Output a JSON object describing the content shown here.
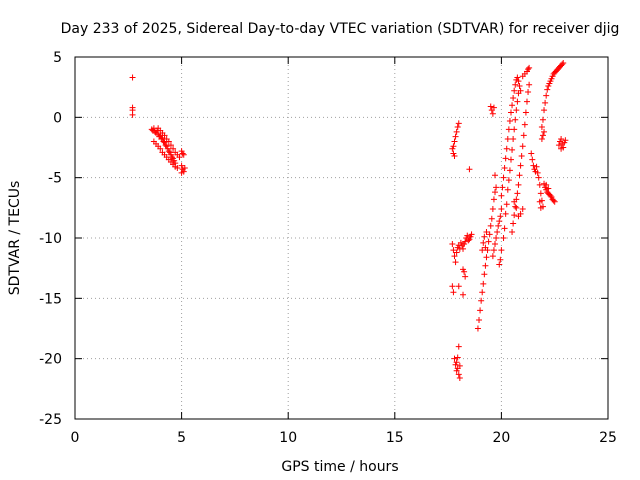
{
  "chart_data": {
    "type": "scatter",
    "title": "Day 233 of 2025, Sidereal Day-to-day VTEC variation (SDTVAR) for receiver djig",
    "xlabel": "GPS time / hours",
    "ylabel": "SDTVAR / TECUs",
    "xlim": [
      0,
      25
    ],
    "ylim": [
      -25,
      5
    ],
    "x_ticks": [
      0,
      5,
      10,
      15,
      20,
      25
    ],
    "x_tick_labels": [
      "0",
      "5",
      "10",
      "15",
      "20",
      "25"
    ],
    "y_ticks": [
      5,
      0,
      -5,
      -10,
      -15,
      -20,
      -25
    ],
    "y_tick_labels": [
      "5",
      "0",
      "-5",
      "-10",
      "-15",
      "-20",
      "-25"
    ],
    "grid": true,
    "marker": "+",
    "series": [
      {
        "name": "SDTVAR",
        "color": "#ff0000",
        "points": [
          [
            2.7,
            3.3
          ],
          [
            2.7,
            0.8
          ],
          [
            2.7,
            0.6
          ],
          [
            2.7,
            0.2
          ],
          [
            3.6,
            -1.0
          ],
          [
            3.65,
            -1.1
          ],
          [
            3.7,
            -0.9
          ],
          [
            3.75,
            -1.2
          ],
          [
            3.8,
            -1.3
          ],
          [
            3.85,
            -1.1
          ],
          [
            3.9,
            -1.4
          ],
          [
            3.95,
            -1.6
          ],
          [
            4.0,
            -1.5
          ],
          [
            4.05,
            -1.8
          ],
          [
            4.1,
            -1.7
          ],
          [
            4.15,
            -2.0
          ],
          [
            4.2,
            -2.1
          ],
          [
            4.25,
            -2.3
          ],
          [
            4.3,
            -2.4
          ],
          [
            4.35,
            -2.6
          ],
          [
            4.4,
            -2.8
          ],
          [
            4.45,
            -2.9
          ],
          [
            4.5,
            -3.1
          ],
          [
            4.55,
            -3.3
          ],
          [
            4.6,
            -3.4
          ],
          [
            4.65,
            -3.6
          ],
          [
            4.7,
            -3.8
          ],
          [
            3.7,
            -2.0
          ],
          [
            3.8,
            -2.2
          ],
          [
            3.9,
            -2.4
          ],
          [
            4.0,
            -2.6
          ],
          [
            4.1,
            -2.9
          ],
          [
            4.2,
            -3.1
          ],
          [
            4.3,
            -3.3
          ],
          [
            4.4,
            -3.5
          ],
          [
            4.5,
            -3.7
          ],
          [
            4.6,
            -3.9
          ],
          [
            4.7,
            -4.1
          ],
          [
            4.8,
            -4.2
          ],
          [
            3.9,
            -0.9
          ],
          [
            4.0,
            -1.1
          ],
          [
            4.1,
            -1.3
          ],
          [
            4.2,
            -1.5
          ],
          [
            4.3,
            -1.8
          ],
          [
            4.4,
            -2.0
          ],
          [
            4.5,
            -2.3
          ],
          [
            4.6,
            -2.6
          ],
          [
            4.7,
            -2.9
          ],
          [
            4.8,
            -3.1
          ],
          [
            4.9,
            -3.3
          ],
          [
            5.0,
            -2.8
          ],
          [
            5.05,
            -3.0
          ],
          [
            5.1,
            -3.1
          ],
          [
            5.0,
            -4.0
          ],
          [
            5.05,
            -4.3
          ],
          [
            5.1,
            -4.5
          ],
          [
            5.15,
            -4.2
          ],
          [
            5.0,
            -4.6
          ],
          [
            17.7,
            -2.6
          ],
          [
            17.75,
            -2.4
          ],
          [
            17.8,
            -2.0
          ],
          [
            17.85,
            -1.6
          ],
          [
            17.9,
            -1.2
          ],
          [
            17.95,
            -0.8
          ],
          [
            18.0,
            -0.5
          ],
          [
            17.75,
            -3.0
          ],
          [
            17.8,
            -3.2
          ],
          [
            17.7,
            -10.5
          ],
          [
            17.75,
            -11.0
          ],
          [
            17.8,
            -11.5
          ],
          [
            17.85,
            -12.0
          ],
          [
            17.9,
            -11.2
          ],
          [
            17.95,
            -10.8
          ],
          [
            18.0,
            -10.6
          ],
          [
            18.05,
            -10.9
          ],
          [
            18.1,
            -10.4
          ],
          [
            18.15,
            -10.6
          ],
          [
            18.2,
            -10.9
          ],
          [
            18.25,
            -10.5
          ],
          [
            18.3,
            -10.3
          ],
          [
            18.35,
            -10.0
          ],
          [
            18.4,
            -9.8
          ],
          [
            18.45,
            -10.2
          ],
          [
            18.5,
            -10.1
          ],
          [
            18.55,
            -9.9
          ],
          [
            18.6,
            -9.7
          ],
          [
            17.7,
            -14.0
          ],
          [
            17.75,
            -14.5
          ],
          [
            18.0,
            -14.0
          ],
          [
            18.2,
            -14.7
          ],
          [
            18.25,
            -12.8
          ],
          [
            18.3,
            -13.2
          ],
          [
            18.2,
            -12.6
          ],
          [
            17.8,
            -20.0
          ],
          [
            17.85,
            -20.5
          ],
          [
            17.9,
            -21.0
          ],
          [
            17.95,
            -20.8
          ],
          [
            18.0,
            -21.3
          ],
          [
            18.05,
            -21.6
          ],
          [
            17.9,
            -20.3
          ],
          [
            17.95,
            -19.9
          ],
          [
            18.0,
            -19.0
          ],
          [
            18.05,
            -20.6
          ],
          [
            18.5,
            -4.3
          ],
          [
            18.9,
            -17.5
          ],
          [
            18.95,
            -16.8
          ],
          [
            19.0,
            -16.0
          ],
          [
            19.05,
            -15.2
          ],
          [
            19.1,
            -14.5
          ],
          [
            19.15,
            -13.8
          ],
          [
            19.2,
            -13.0
          ],
          [
            19.25,
            -12.3
          ],
          [
            19.3,
            -11.6
          ],
          [
            19.35,
            -11.0
          ],
          [
            19.4,
            -10.3
          ],
          [
            19.45,
            -9.7
          ],
          [
            19.5,
            -9.0
          ],
          [
            19.55,
            -8.4
          ],
          [
            19.6,
            -7.6
          ],
          [
            19.65,
            -6.8
          ],
          [
            19.7,
            -6.2
          ],
          [
            19.75,
            -5.8
          ],
          [
            19.1,
            -11.0
          ],
          [
            19.15,
            -10.4
          ],
          [
            19.2,
            -9.9
          ],
          [
            19.25,
            -10.8
          ],
          [
            19.3,
            -9.5
          ],
          [
            19.5,
            0.9
          ],
          [
            19.55,
            0.6
          ],
          [
            19.6,
            0.3
          ],
          [
            19.65,
            0.8
          ],
          [
            19.6,
            -11.5
          ],
          [
            19.65,
            -11.0
          ],
          [
            19.7,
            -10.5
          ],
          [
            19.75,
            -10.0
          ],
          [
            19.8,
            -9.5
          ],
          [
            19.85,
            -9.0
          ],
          [
            19.9,
            -8.6
          ],
          [
            19.95,
            -8.2
          ],
          [
            20.0,
            -7.6
          ],
          [
            19.7,
            -4.8
          ],
          [
            19.9,
            -12.2
          ],
          [
            19.95,
            -11.8
          ],
          [
            20.0,
            -11.0
          ],
          [
            20.0,
            -6.5
          ],
          [
            20.05,
            -5.8
          ],
          [
            20.1,
            -5.0
          ],
          [
            20.15,
            -4.2
          ],
          [
            20.2,
            -3.4
          ],
          [
            20.25,
            -2.6
          ],
          [
            20.3,
            -1.8
          ],
          [
            20.35,
            -1.0
          ],
          [
            20.4,
            -0.3
          ],
          [
            20.45,
            0.4
          ],
          [
            20.5,
            1.0
          ],
          [
            20.55,
            1.6
          ],
          [
            20.6,
            2.2
          ],
          [
            20.65,
            2.7
          ],
          [
            20.7,
            3.1
          ],
          [
            20.75,
            3.3
          ],
          [
            20.8,
            3.0
          ],
          [
            20.85,
            2.6
          ],
          [
            20.9,
            2.2
          ],
          [
            20.1,
            -10.0
          ],
          [
            20.15,
            -9.2
          ],
          [
            20.2,
            -8.0
          ],
          [
            20.25,
            -7.2
          ],
          [
            20.3,
            -6.0
          ],
          [
            20.35,
            -5.2
          ],
          [
            20.4,
            -4.4
          ],
          [
            20.45,
            -3.5
          ],
          [
            20.5,
            -2.7
          ],
          [
            20.55,
            -1.8
          ],
          [
            20.6,
            -1.0
          ],
          [
            20.65,
            -0.2
          ],
          [
            20.7,
            0.6
          ],
          [
            20.75,
            1.3
          ],
          [
            20.8,
            2.0
          ],
          [
            20.5,
            -9.5
          ],
          [
            20.55,
            -8.8
          ],
          [
            20.6,
            -8.1
          ],
          [
            20.65,
            -7.4
          ],
          [
            20.7,
            -6.8
          ],
          [
            20.75,
            -6.3
          ],
          [
            20.8,
            -5.6
          ],
          [
            20.85,
            -4.8
          ],
          [
            20.9,
            -4.0
          ],
          [
            20.95,
            -3.2
          ],
          [
            21.0,
            -2.4
          ],
          [
            21.05,
            -1.5
          ],
          [
            21.1,
            -0.6
          ],
          [
            21.15,
            0.4
          ],
          [
            21.2,
            1.3
          ],
          [
            21.25,
            2.1
          ],
          [
            21.3,
            2.7
          ],
          [
            21.0,
            3.4
          ],
          [
            21.1,
            3.6
          ],
          [
            21.2,
            3.8
          ],
          [
            21.25,
            4.0
          ],
          [
            21.3,
            4.1
          ],
          [
            20.6,
            -7.0
          ],
          [
            20.7,
            -7.5
          ],
          [
            20.8,
            -8.2
          ],
          [
            20.9,
            -8.0
          ],
          [
            21.0,
            -7.6
          ],
          [
            21.4,
            -3.0
          ],
          [
            21.45,
            -3.5
          ],
          [
            21.5,
            -4.0
          ],
          [
            21.55,
            -4.3
          ],
          [
            21.6,
            -4.5
          ],
          [
            21.65,
            -4.1
          ],
          [
            21.7,
            -4.6
          ],
          [
            21.75,
            -5.0
          ],
          [
            21.8,
            -5.6
          ],
          [
            21.85,
            -6.3
          ],
          [
            21.9,
            -6.9
          ],
          [
            21.95,
            -7.4
          ],
          [
            21.8,
            -7.0
          ],
          [
            21.85,
            -7.5
          ],
          [
            21.9,
            -0.8
          ],
          [
            21.95,
            -0.2
          ],
          [
            22.0,
            0.6
          ],
          [
            22.05,
            1.2
          ],
          [
            22.1,
            1.8
          ],
          [
            22.15,
            2.3
          ],
          [
            22.2,
            2.6
          ],
          [
            22.25,
            2.8
          ],
          [
            22.3,
            3.0
          ],
          [
            22.35,
            3.2
          ],
          [
            22.4,
            3.4
          ],
          [
            22.45,
            3.6
          ],
          [
            22.5,
            3.7
          ],
          [
            22.55,
            3.8
          ],
          [
            22.6,
            3.9
          ],
          [
            22.65,
            4.0
          ],
          [
            22.7,
            4.1
          ],
          [
            22.75,
            4.2
          ],
          [
            22.8,
            4.3
          ],
          [
            22.85,
            4.4
          ],
          [
            22.9,
            4.5
          ],
          [
            21.9,
            -1.8
          ],
          [
            21.95,
            -1.5
          ],
          [
            22.0,
            -1.2
          ],
          [
            22.0,
            -5.5
          ],
          [
            22.05,
            -5.8
          ],
          [
            22.1,
            -6.0
          ],
          [
            22.15,
            -6.2
          ],
          [
            22.2,
            -6.3
          ],
          [
            22.25,
            -6.4
          ],
          [
            22.3,
            -6.5
          ],
          [
            22.35,
            -6.6
          ],
          [
            22.4,
            -6.8
          ],
          [
            22.45,
            -6.9
          ],
          [
            22.5,
            -7.0
          ],
          [
            22.1,
            -5.6
          ],
          [
            22.2,
            -5.9
          ],
          [
            22.7,
            -2.3
          ],
          [
            22.75,
            -2.0
          ],
          [
            22.8,
            -1.8
          ],
          [
            22.85,
            -2.2
          ],
          [
            22.9,
            -2.5
          ],
          [
            22.95,
            -2.1
          ],
          [
            23.0,
            -1.9
          ],
          [
            22.8,
            -2.6
          ]
        ]
      }
    ]
  }
}
